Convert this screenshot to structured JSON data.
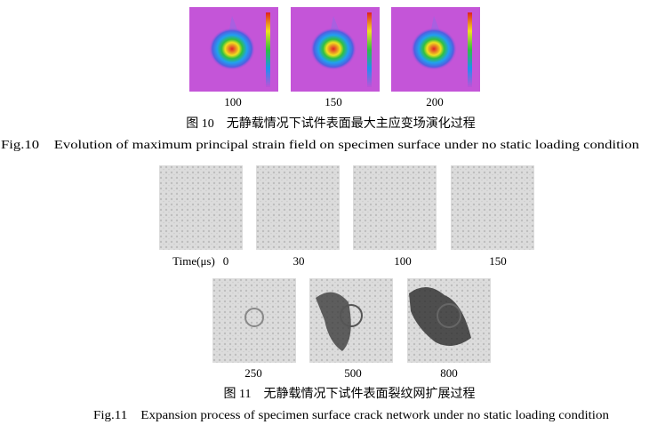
{
  "figure10": {
    "panels": [
      {
        "label": "100"
      },
      {
        "label": "150"
      },
      {
        "label": "200"
      }
    ],
    "caption_cn": "图 10　无静载情况下试件表面最大主应变场演化过程",
    "caption_en": "Fig.10　Evolution of maximum principal strain field on specimen surface under no static loading condition"
  },
  "figure11": {
    "time_label": "Time(μs)",
    "panels": [
      {
        "label": "0"
      },
      {
        "label": "30"
      },
      {
        "label": "100"
      },
      {
        "label": "150"
      },
      {
        "label": "250"
      },
      {
        "label": "500"
      },
      {
        "label": "800"
      }
    ],
    "caption_cn": "图 11　无静载情况下试件表面裂纹网扩展过程",
    "caption_en": "Fig.11　Expansion process of specimen surface crack network under no static loading condition"
  }
}
